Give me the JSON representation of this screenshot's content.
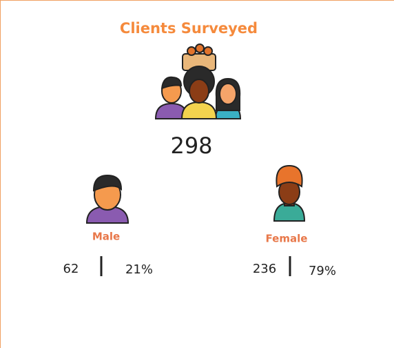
{
  "title": "Clients Surveyed",
  "total": 298,
  "groups": [
    {
      "label": "Male",
      "count": 62,
      "percent": "21%"
    },
    {
      "label": "Female",
      "count": 236,
      "percent": "79%"
    }
  ]
}
